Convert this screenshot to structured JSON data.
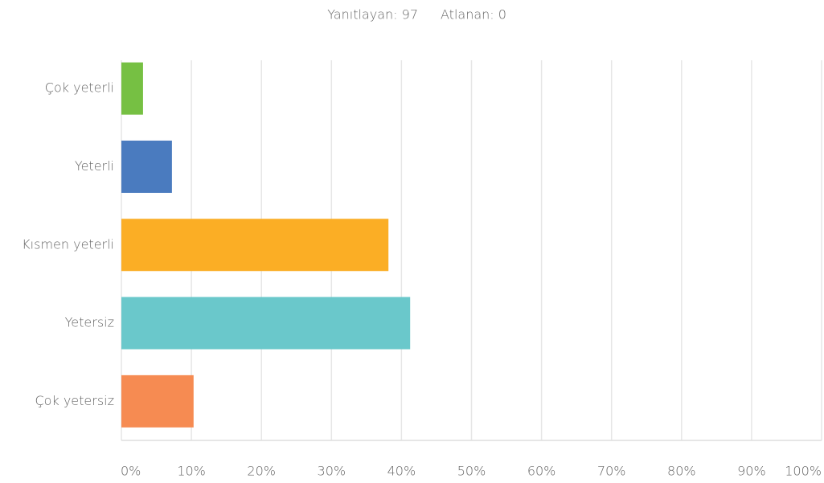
{
  "chart_data": {
    "type": "bar",
    "orientation": "horizontal",
    "respondents": "Yanıtlayan: 97",
    "skipped": "Atlanan: 0",
    "categories": [
      "Çok yeterli",
      "Yeterli",
      "Kısmen yeterli",
      "Yetersiz",
      "Çok yetersiz"
    ],
    "values": [
      3.09,
      7.22,
      38.14,
      41.24,
      10.31
    ],
    "colors": [
      "#76c043",
      "#4a7bbf",
      "#fbae25",
      "#6ac8cb",
      "#f68b52"
    ],
    "xlim": [
      0,
      100
    ],
    "xticks": [
      {
        "value": 0,
        "label": "0%"
      },
      {
        "value": 10,
        "label": "10%"
      },
      {
        "value": 20,
        "label": "20%"
      },
      {
        "value": 30,
        "label": "30%"
      },
      {
        "value": 40,
        "label": "40%"
      },
      {
        "value": 50,
        "label": "50%"
      },
      {
        "value": 60,
        "label": "60%"
      },
      {
        "value": 70,
        "label": "70%"
      },
      {
        "value": 80,
        "label": "80%"
      },
      {
        "value": 90,
        "label": "90%"
      },
      {
        "value": 100,
        "label": "100%"
      }
    ],
    "grid": true
  }
}
